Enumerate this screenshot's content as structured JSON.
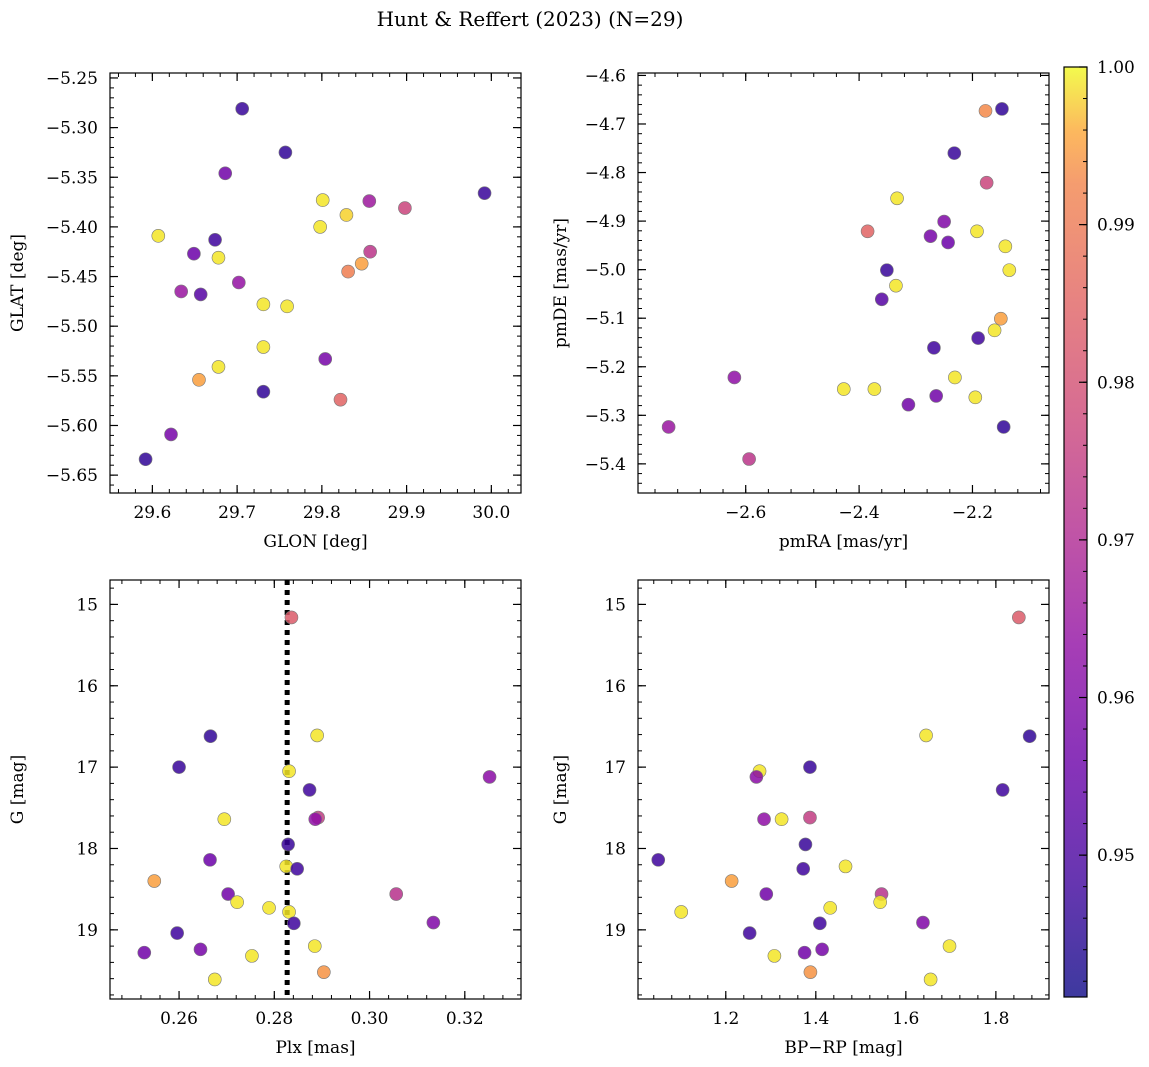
{
  "figure_title": "Hunt & Reffert (2023) (N=29)",
  "colorbar": {
    "min": 0.941,
    "max": 1.0,
    "ticks": [
      "0.95",
      "0.96",
      "0.97",
      "0.98",
      "0.99",
      "1.00"
    ],
    "colormap": "plasma"
  },
  "chart_data": [
    {
      "type": "scatter",
      "xlabel": "GLON [deg]",
      "ylabel": "GLAT [deg]",
      "xlim": [
        29.55,
        30.035
      ],
      "ylim": [
        -5.668,
        -5.245
      ],
      "xticks": [
        "29.6",
        "29.7",
        "29.8",
        "29.9",
        "30.0"
      ],
      "yticks": [
        "-5.25",
        "-5.30",
        "-5.35",
        "-5.40",
        "-5.45",
        "-5.50",
        "-5.55",
        "-5.60",
        "-5.65"
      ],
      "points": [
        {
          "x": 29.706,
          "y": -5.281,
          "c": 0.947
        },
        {
          "x": 29.757,
          "y": -5.325,
          "c": 0.946
        },
        {
          "x": 29.686,
          "y": -5.346,
          "c": 0.957
        },
        {
          "x": 29.992,
          "y": -5.366,
          "c": 0.947
        },
        {
          "x": 29.801,
          "y": -5.373,
          "c": 0.999
        },
        {
          "x": 29.856,
          "y": -5.374,
          "c": 0.966
        },
        {
          "x": 29.898,
          "y": -5.381,
          "c": 0.977
        },
        {
          "x": 29.829,
          "y": -5.388,
          "c": 0.998
        },
        {
          "x": 29.798,
          "y": -5.4,
          "c": 0.999
        },
        {
          "x": 29.607,
          "y": -5.409,
          "c": 0.999
        },
        {
          "x": 29.674,
          "y": -5.413,
          "c": 0.948
        },
        {
          "x": 29.857,
          "y": -5.425,
          "c": 0.973
        },
        {
          "x": 29.649,
          "y": -5.427,
          "c": 0.956
        },
        {
          "x": 29.678,
          "y": -5.431,
          "c": 0.999
        },
        {
          "x": 29.847,
          "y": -5.437,
          "c": 0.995
        },
        {
          "x": 29.831,
          "y": -5.445,
          "c": 0.991
        },
        {
          "x": 29.702,
          "y": -5.456,
          "c": 0.964
        },
        {
          "x": 29.634,
          "y": -5.465,
          "c": 0.965
        },
        {
          "x": 29.657,
          "y": -5.468,
          "c": 0.952
        },
        {
          "x": 29.731,
          "y": -5.478,
          "c": 0.999
        },
        {
          "x": 29.759,
          "y": -5.48,
          "c": 0.999
        },
        {
          "x": 29.731,
          "y": -5.521,
          "c": 0.999
        },
        {
          "x": 29.804,
          "y": -5.533,
          "c": 0.958
        },
        {
          "x": 29.678,
          "y": -5.541,
          "c": 0.999
        },
        {
          "x": 29.655,
          "y": -5.554,
          "c": 0.995
        },
        {
          "x": 29.731,
          "y": -5.566,
          "c": 0.946
        },
        {
          "x": 29.822,
          "y": -5.574,
          "c": 0.985
        },
        {
          "x": 29.622,
          "y": -5.609,
          "c": 0.958
        },
        {
          "x": 29.592,
          "y": -5.634,
          "c": 0.946
        }
      ]
    },
    {
      "type": "scatter",
      "xlabel": "pmRA [mas/yr]",
      "ylabel": "pmDE [mas/yr]",
      "xlim": [
        -2.79,
        -2.065
      ],
      "ylim": [
        -5.46,
        -4.595
      ],
      "xticks": [
        "-2.6",
        "-2.4",
        "-2.2"
      ],
      "yticks": [
        "-4.6",
        "-4.7",
        "-4.8",
        "-4.9",
        "-5.0",
        "-5.1",
        "-5.2",
        "-5.3",
        "-5.4"
      ],
      "points": [
        {
          "x": -2.148,
          "y": -4.669,
          "c": 0.946
        },
        {
          "x": -2.177,
          "y": -4.673,
          "c": 0.993
        },
        {
          "x": -2.232,
          "y": -4.76,
          "c": 0.947
        },
        {
          "x": -2.175,
          "y": -4.821,
          "c": 0.977
        },
        {
          "x": -2.333,
          "y": -4.853,
          "c": 0.999
        },
        {
          "x": -2.25,
          "y": -4.901,
          "c": 0.96
        },
        {
          "x": -2.385,
          "y": -4.921,
          "c": 0.985
        },
        {
          "x": -2.192,
          "y": -4.921,
          "c": 0.999
        },
        {
          "x": -2.274,
          "y": -4.931,
          "c": 0.958
        },
        {
          "x": -2.243,
          "y": -4.944,
          "c": 0.956
        },
        {
          "x": -2.142,
          "y": -4.952,
          "c": 0.999
        },
        {
          "x": -2.135,
          "y": -5.001,
          "c": 0.999
        },
        {
          "x": -2.351,
          "y": -5.001,
          "c": 0.947
        },
        {
          "x": -2.335,
          "y": -5.033,
          "c": 0.999
        },
        {
          "x": -2.36,
          "y": -5.061,
          "c": 0.952
        },
        {
          "x": -2.15,
          "y": -5.101,
          "c": 0.995
        },
        {
          "x": -2.161,
          "y": -5.125,
          "c": 0.999
        },
        {
          "x": -2.19,
          "y": -5.141,
          "c": 0.948
        },
        {
          "x": -2.268,
          "y": -5.161,
          "c": 0.948
        },
        {
          "x": -2.62,
          "y": -5.222,
          "c": 0.963
        },
        {
          "x": -2.231,
          "y": -5.222,
          "c": 0.999
        },
        {
          "x": -2.427,
          "y": -5.246,
          "c": 0.999
        },
        {
          "x": -2.373,
          "y": -5.246,
          "c": 0.999
        },
        {
          "x": -2.264,
          "y": -5.26,
          "c": 0.957
        },
        {
          "x": -2.195,
          "y": -5.263,
          "c": 0.999
        },
        {
          "x": -2.313,
          "y": -5.278,
          "c": 0.957
        },
        {
          "x": -2.736,
          "y": -5.324,
          "c": 0.965
        },
        {
          "x": -2.145,
          "y": -5.324,
          "c": 0.946
        },
        {
          "x": -2.594,
          "y": -5.39,
          "c": 0.973
        }
      ]
    },
    {
      "type": "scatter",
      "xlabel": "Plx [mas]",
      "ylabel": "G [mag]",
      "xlim": [
        0.2455,
        0.3318
      ],
      "ylim": [
        19.85,
        14.7
      ],
      "y_inverted": true,
      "vline_x": 0.2827,
      "xticks": [
        "0.26",
        "0.28",
        "0.30",
        "0.32"
      ],
      "yticks": [
        "15",
        "16",
        "17",
        "18",
        "19"
      ],
      "points": [
        {
          "x": 0.2836,
          "y": 15.16,
          "c": 0.983
        },
        {
          "x": 0.289,
          "y": 16.61,
          "c": 0.999
        },
        {
          "x": 0.2666,
          "y": 16.62,
          "c": 0.946
        },
        {
          "x": 0.26,
          "y": 17.0,
          "c": 0.947
        },
        {
          "x": 0.2831,
          "y": 17.05,
          "c": 0.999
        },
        {
          "x": 0.3252,
          "y": 17.12,
          "c": 0.962
        },
        {
          "x": 0.2874,
          "y": 17.28,
          "c": 0.948
        },
        {
          "x": 0.2695,
          "y": 17.64,
          "c": 0.999
        },
        {
          "x": 0.2892,
          "y": 17.62,
          "c": 0.975
        },
        {
          "x": 0.2886,
          "y": 17.64,
          "c": 0.963
        },
        {
          "x": 0.2829,
          "y": 17.95,
          "c": 0.947
        },
        {
          "x": 0.2665,
          "y": 18.14,
          "c": 0.956
        },
        {
          "x": 0.2825,
          "y": 18.22,
          "c": 0.999
        },
        {
          "x": 0.2848,
          "y": 18.25,
          "c": 0.948
        },
        {
          "x": 0.2548,
          "y": 18.4,
          "c": 0.995
        },
        {
          "x": 0.2703,
          "y": 18.56,
          "c": 0.957
        },
        {
          "x": 0.3056,
          "y": 18.56,
          "c": 0.972
        },
        {
          "x": 0.2722,
          "y": 18.66,
          "c": 0.999
        },
        {
          "x": 0.2789,
          "y": 18.73,
          "c": 0.999
        },
        {
          "x": 0.2831,
          "y": 18.78,
          "c": 0.999
        },
        {
          "x": 0.3134,
          "y": 18.91,
          "c": 0.96
        },
        {
          "x": 0.2841,
          "y": 18.92,
          "c": 0.948
        },
        {
          "x": 0.2596,
          "y": 19.04,
          "c": 0.948
        },
        {
          "x": 0.2885,
          "y": 19.2,
          "c": 0.999
        },
        {
          "x": 0.2645,
          "y": 19.24,
          "c": 0.958
        },
        {
          "x": 0.2527,
          "y": 19.28,
          "c": 0.957
        },
        {
          "x": 0.2753,
          "y": 19.32,
          "c": 0.999
        },
        {
          "x": 0.2904,
          "y": 19.52,
          "c": 0.994
        },
        {
          "x": 0.2675,
          "y": 19.61,
          "c": 0.999
        }
      ]
    },
    {
      "type": "scatter",
      "xlabel": "BP-RP [mag]",
      "ylabel": "G [mag]",
      "xlim": [
        1.005,
        1.918
      ],
      "ylim": [
        19.85,
        14.7
      ],
      "y_inverted": true,
      "xticks": [
        "1.2",
        "1.4",
        "1.6",
        "1.8"
      ],
      "yticks": [
        "15",
        "16",
        "17",
        "18",
        "19"
      ],
      "points": [
        {
          "x": 1.851,
          "y": 15.16,
          "c": 0.983
        },
        {
          "x": 1.645,
          "y": 16.61,
          "c": 0.999
        },
        {
          "x": 1.875,
          "y": 16.62,
          "c": 0.946
        },
        {
          "x": 1.387,
          "y": 17.0,
          "c": 0.947
        },
        {
          "x": 1.275,
          "y": 17.05,
          "c": 0.999
        },
        {
          "x": 1.268,
          "y": 17.12,
          "c": 0.962
        },
        {
          "x": 1.815,
          "y": 17.28,
          "c": 0.948
        },
        {
          "x": 1.324,
          "y": 17.64,
          "c": 0.999
        },
        {
          "x": 1.387,
          "y": 17.62,
          "c": 0.975
        },
        {
          "x": 1.285,
          "y": 17.64,
          "c": 0.963
        },
        {
          "x": 1.377,
          "y": 17.95,
          "c": 0.947
        },
        {
          "x": 1.05,
          "y": 18.14,
          "c": 0.948
        },
        {
          "x": 1.466,
          "y": 18.22,
          "c": 0.999
        },
        {
          "x": 1.372,
          "y": 18.25,
          "c": 0.948
        },
        {
          "x": 1.213,
          "y": 18.4,
          "c": 0.995
        },
        {
          "x": 1.29,
          "y": 18.56,
          "c": 0.957
        },
        {
          "x": 1.546,
          "y": 18.56,
          "c": 0.972
        },
        {
          "x": 1.543,
          "y": 18.66,
          "c": 0.999
        },
        {
          "x": 1.432,
          "y": 18.73,
          "c": 0.999
        },
        {
          "x": 1.101,
          "y": 18.78,
          "c": 0.999
        },
        {
          "x": 1.638,
          "y": 18.91,
          "c": 0.96
        },
        {
          "x": 1.409,
          "y": 18.92,
          "c": 0.948
        },
        {
          "x": 1.253,
          "y": 19.04,
          "c": 0.948
        },
        {
          "x": 1.697,
          "y": 19.2,
          "c": 0.999
        },
        {
          "x": 1.414,
          "y": 19.24,
          "c": 0.958
        },
        {
          "x": 1.375,
          "y": 19.28,
          "c": 0.957
        },
        {
          "x": 1.308,
          "y": 19.32,
          "c": 0.999
        },
        {
          "x": 1.388,
          "y": 19.52,
          "c": 0.994
        },
        {
          "x": 1.655,
          "y": 19.61,
          "c": 0.999
        }
      ]
    }
  ]
}
